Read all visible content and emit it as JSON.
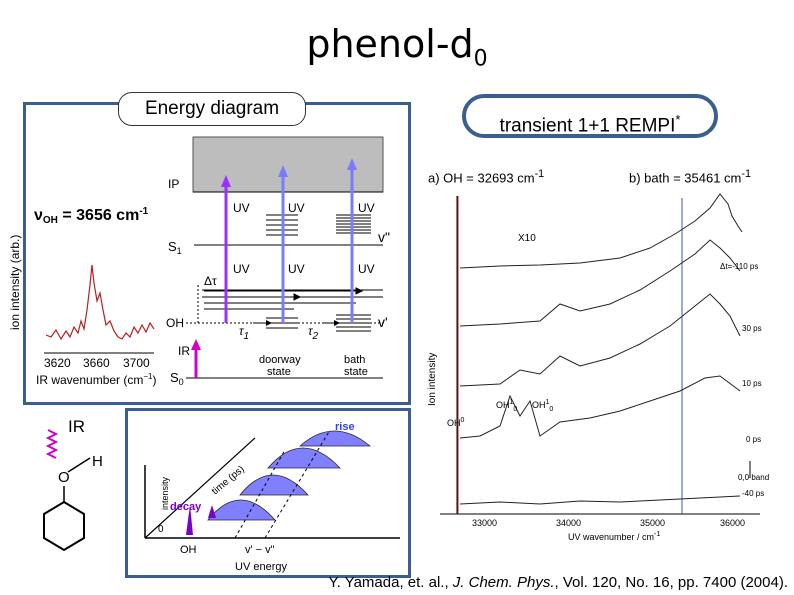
{
  "slide": {
    "title_main": "phenol-d",
    "title_sub": "0",
    "energy_diagram_label": "Energy diagram",
    "rempi_label_main": "transient 1+1 REMPI",
    "rempi_label_sup": "*",
    "citation_prefix": "Y. Yamada, et. al., ",
    "citation_journal": "J. Chem. Phys.",
    "citation_suffix": ", Vol. 120, No. 16, pp. 7400 (2004)."
  },
  "ir_spectrum": {
    "freq_label_main": "ν",
    "freq_label_sub": "OH",
    "freq_label_rest": " = 3656 cm",
    "freq_label_sup": "-1",
    "ylabel": "ion intensity (arb.)",
    "xlabel_main": "IR wavenumber (cm",
    "xlabel_sup": "−1",
    "xlabel_end": ")",
    "ticks": [
      "3620",
      "3660",
      "3700"
    ]
  },
  "levels": {
    "ip": "IP",
    "s1": "S",
    "s1_sub": "1",
    "oh": "OH",
    "s0": "S",
    "s0_sub": "0",
    "ir": "IR",
    "uv": "UV",
    "delta_tau": "Δτ",
    "v2": "v\"",
    "v1": "v'",
    "tau": "τ",
    "tau1": "1",
    "tau2": "2",
    "doorway_1": "doorway",
    "doorway_2": "state",
    "bath_1": "bath",
    "bath_2": "state"
  },
  "schematic": {
    "ir_label": "IR",
    "h": "H",
    "o": "O",
    "rise": "rise",
    "decay": "decay",
    "time_axis": "time (ps)",
    "intensity": "intensity",
    "zero": "0",
    "oh": "OH",
    "vdiff": "v' − v\"",
    "uv_energy": "UV energy"
  },
  "rempi": {
    "label_a_main": "a) OH = 32693 cm",
    "label_a_sup": "-1",
    "label_b_main": "b) bath = 35461 cm",
    "label_b_sup": "-1",
    "ylabel": "Ion intensity",
    "x10": "X10",
    "delays": [
      "Δt=-110 ps",
      "30 ps",
      "10 ps",
      "0 ps",
      "-40 ps"
    ],
    "band_0_0": "0,0 band",
    "oh0": "OH",
    "oh0_sup": "0",
    "oh1": "OH",
    "oh1_sup": "1",
    "oh1_sub": "0",
    "oh1b": "OH",
    "xlabel": "UV wavenumber / cm",
    "xlabel_sup": "-1",
    "xticks": [
      "33000",
      "34000",
      "35000",
      "36000"
    ]
  },
  "colors": {
    "frame": "#3a5f8f",
    "uv_arrow": "#7b7bff",
    "pump_arrow": "#9b30ff",
    "ir_arrow": "#d200c8",
    "spectrum": "#b22222"
  }
}
